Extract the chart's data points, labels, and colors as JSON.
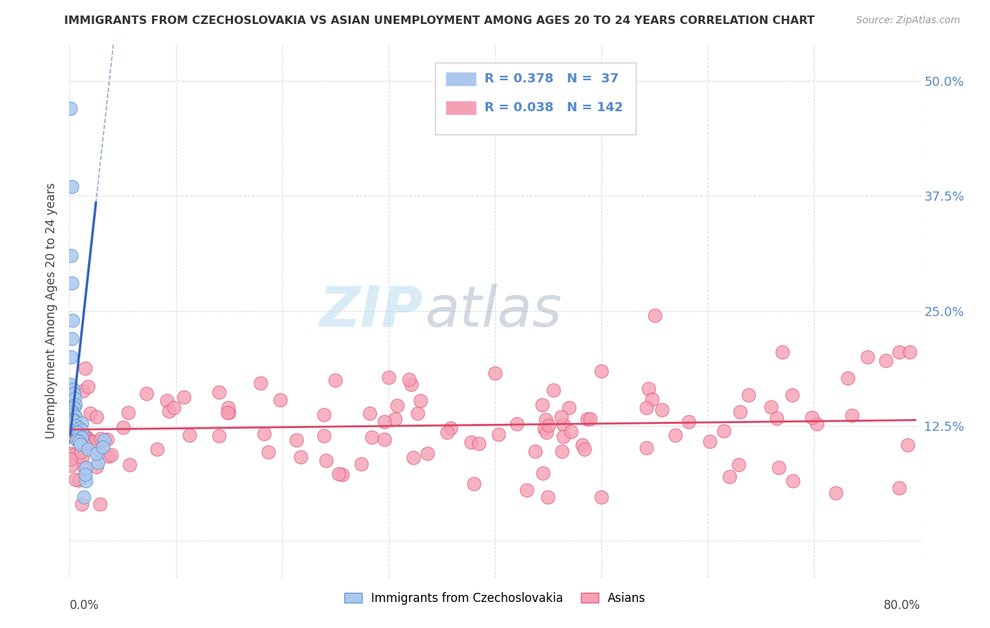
{
  "title": "IMMIGRANTS FROM CZECHOSLOVAKIA VS ASIAN UNEMPLOYMENT AMONG AGES 20 TO 24 YEARS CORRELATION CHART",
  "source": "Source: ZipAtlas.com",
  "ylabel": "Unemployment Among Ages 20 to 24 years",
  "legend_blue_r": "0.378",
  "legend_blue_n": "37",
  "legend_pink_r": "0.038",
  "legend_pink_n": "142",
  "blue_color": "#aac8f0",
  "blue_edge": "#6699cc",
  "pink_color": "#f5a0b5",
  "pink_edge": "#e06080",
  "trendline_blue": "#3366bb",
  "trendline_pink": "#dd4466",
  "xmin": 0.0,
  "xmax": 0.8,
  "ymin": -0.04,
  "ymax": 0.54,
  "ytick_vals": [
    0.0,
    0.125,
    0.25,
    0.375,
    0.5
  ],
  "ytick_labels_right": [
    "",
    "12.5%",
    "25.0%",
    "37.5%",
    "50.0%"
  ],
  "right_tick_color": "#5588cc",
  "watermark_zip_color": "#aaccee",
  "watermark_atlas_color": "#bbccdd",
  "grid_color": "#dddddd",
  "title_color": "#333333",
  "source_color": "#999999"
}
